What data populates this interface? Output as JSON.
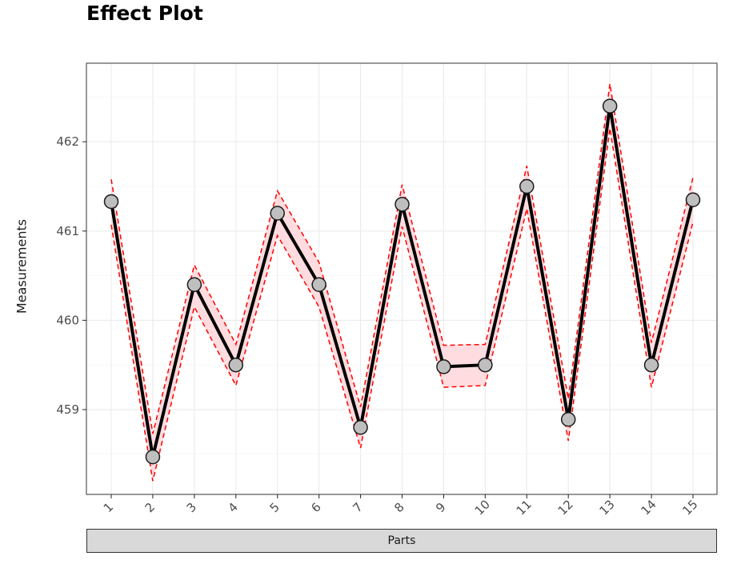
{
  "chart_data": {
    "type": "line",
    "title": "Effect Plot",
    "xlabel": "Parts",
    "ylabel": "Measurements",
    "categories": [
      "1",
      "2",
      "3",
      "4",
      "5",
      "6",
      "7",
      "8",
      "9",
      "10",
      "11",
      "12",
      "13",
      "14",
      "15"
    ],
    "series": [
      {
        "values": [
          461.33,
          458.47,
          460.4,
          459.5,
          461.2,
          460.4,
          458.8,
          461.3,
          459.48,
          459.5,
          461.5,
          458.89,
          462.4,
          459.5,
          461.35
        ],
        "lower": [
          461.07,
          458.2,
          460.15,
          459.27,
          460.95,
          460.15,
          458.57,
          461.05,
          459.25,
          459.27,
          461.25,
          458.65,
          462.15,
          459.25,
          461.1
        ],
        "upper": [
          461.58,
          458.73,
          460.62,
          459.73,
          461.45,
          460.65,
          459.03,
          461.52,
          459.72,
          459.73,
          461.73,
          459.12,
          462.65,
          459.75,
          461.6
        ]
      }
    ],
    "y_ticks": [
      459,
      460,
      461,
      462
    ],
    "ylim": [
      458.05,
      462.88
    ],
    "grid": true,
    "colors": {
      "line": "#000000",
      "points_fill": "#bfbfbf",
      "interval_line": "#ff0000",
      "interval_fill": "#ffd6d9",
      "strip_fill": "#d9d9d9"
    }
  }
}
